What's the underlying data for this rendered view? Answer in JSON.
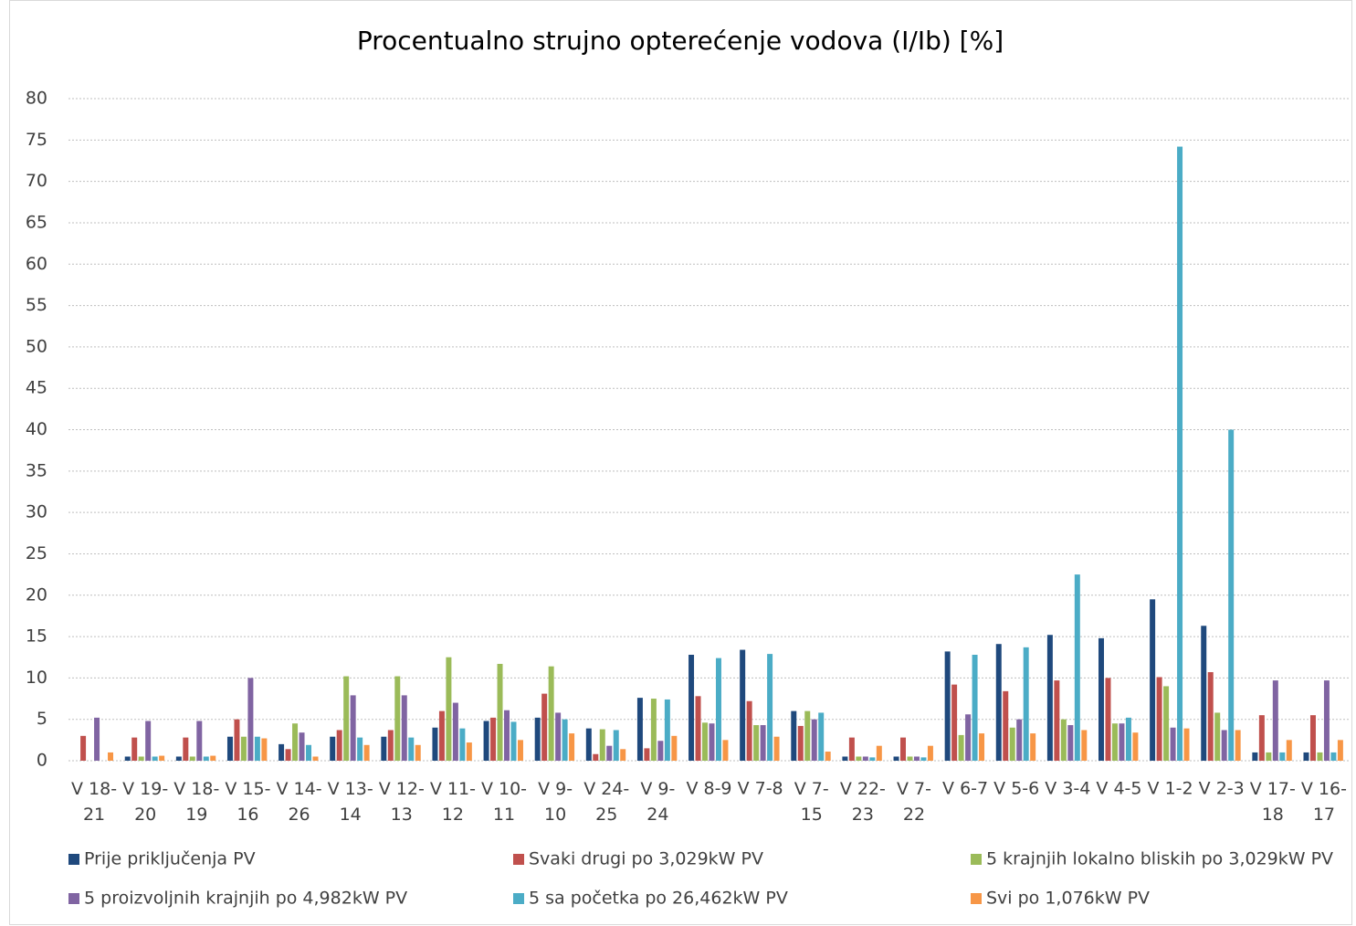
{
  "chart_data": {
    "type": "bar",
    "title": "Procentualno strujno opterećenje vodova (I/Ib) [%]",
    "categories": [
      "V 18-21",
      "V 19-20",
      "V 18-19",
      "V 15-16",
      "V 14-26",
      "V 13-14",
      "V 12-13",
      "V 11-12",
      "V 10-11",
      "V 9-10",
      "V 24-25",
      "V 9-24",
      "V 8-9",
      "V 7-8",
      "V 7-15",
      "V 22-23",
      "V 7-22",
      "V 6-7",
      "V 5-6",
      "V 3-4",
      "V 4-5",
      "V 1-2",
      "V 2-3",
      "V 17-18",
      "V 16-17"
    ],
    "series": [
      {
        "name": "Prije priključenja PV",
        "color": "#1f497d",
        "values": [
          0,
          0.5,
          0.5,
          2.9,
          2,
          2.9,
          2.9,
          4,
          4.8,
          5.2,
          3.9,
          7.6,
          12.8,
          13.4,
          6,
          0.5,
          0.5,
          13.2,
          14.1,
          15.2,
          14.8,
          19.5,
          16.3,
          1,
          1
        ]
      },
      {
        "name": "Svaki drugi po 3,029kW PV",
        "color": "#c0504d",
        "values": [
          3,
          2.8,
          2.8,
          5,
          1.4,
          3.7,
          3.7,
          6,
          5.2,
          8.1,
          0.8,
          1.5,
          7.8,
          7.2,
          4.2,
          2.8,
          2.8,
          9.2,
          8.4,
          9.7,
          10,
          10.1,
          10.7,
          5.5,
          5.5
        ]
      },
      {
        "name": "5 krajnjih lokalno bliskih po 3,029kW PV",
        "color": "#9bbb59",
        "values": [
          0,
          0.5,
          0.5,
          2.9,
          4.5,
          10.2,
          10.2,
          12.5,
          11.7,
          11.4,
          3.8,
          7.5,
          4.6,
          4.3,
          6,
          0.5,
          0.5,
          3.1,
          4,
          5,
          4.5,
          9,
          5.8,
          1,
          1
        ]
      },
      {
        "name": "5 proizvoljnih krajnjih po 4,982kW PV",
        "color": "#8064a2",
        "values": [
          5.2,
          4.8,
          4.8,
          10,
          3.4,
          7.9,
          7.9,
          7,
          6.1,
          5.8,
          1.8,
          2.4,
          4.5,
          4.3,
          5,
          0.5,
          0.5,
          5.6,
          5,
          4.3,
          4.5,
          4,
          3.7,
          9.7,
          9.7
        ]
      },
      {
        "name": "5 sa početka po 26,462kW PV",
        "color": "#4bacc6",
        "values": [
          0,
          0.5,
          0.5,
          2.9,
          1.9,
          2.8,
          2.8,
          3.9,
          4.7,
          5,
          3.7,
          7.4,
          12.4,
          12.9,
          5.8,
          0.4,
          0.4,
          12.8,
          13.7,
          22.5,
          5.2,
          74.2,
          40,
          1,
          1
        ]
      },
      {
        "name": "Svi po 1,076kW PV",
        "color": "#f79646",
        "values": [
          1,
          0.6,
          0.6,
          2.7,
          0.5,
          1.9,
          1.9,
          2.2,
          2.5,
          3.3,
          1.4,
          3,
          2.5,
          2.9,
          1.1,
          1.8,
          1.8,
          3.3,
          3.3,
          3.7,
          3.4,
          3.9,
          3.7,
          2.5,
          2.5
        ]
      }
    ],
    "ylim": [
      0,
      80
    ],
    "yticks": [
      0,
      5,
      10,
      15,
      20,
      25,
      30,
      35,
      40,
      45,
      50,
      55,
      60,
      65,
      70,
      75,
      80
    ],
    "grid": true,
    "legend": "bottom"
  }
}
